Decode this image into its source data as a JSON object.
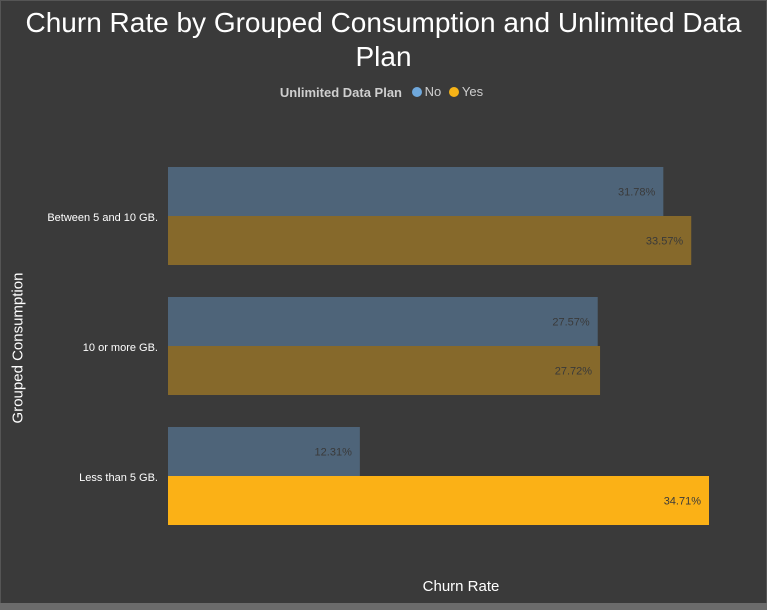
{
  "chart_data": {
    "type": "bar",
    "orientation": "horizontal",
    "title": "Churn Rate by Grouped Consumption and Unlimited Data Plan",
    "xlabel": "Churn Rate",
    "ylabel": "Grouped Consumption",
    "legend": {
      "title": "Unlimited Data Plan",
      "placement": "top-center"
    },
    "categories": [
      "Between 5 and 10 GB.",
      "10 or more GB.",
      "Less than 5 GB."
    ],
    "series": [
      {
        "name": "No",
        "legend_color": "#6fa8dc",
        "bar_color": "#4e6479",
        "values": [
          31.78,
          27.57,
          12.31
        ],
        "labels": [
          "31.78%",
          "27.57%",
          "12.31%"
        ]
      },
      {
        "name": "Yes",
        "legend_color": "#f6b317",
        "bar_color": "#86692b",
        "highlight_color": "#fbb116",
        "values": [
          33.57,
          27.72,
          34.71
        ],
        "labels": [
          "33.57%",
          "27.72%",
          "34.71%"
        ]
      }
    ],
    "highlighted": {
      "series": "Yes",
      "category": "Less than 5 GB."
    },
    "xlim": [
      0,
      34.71
    ],
    "grid": false
  }
}
